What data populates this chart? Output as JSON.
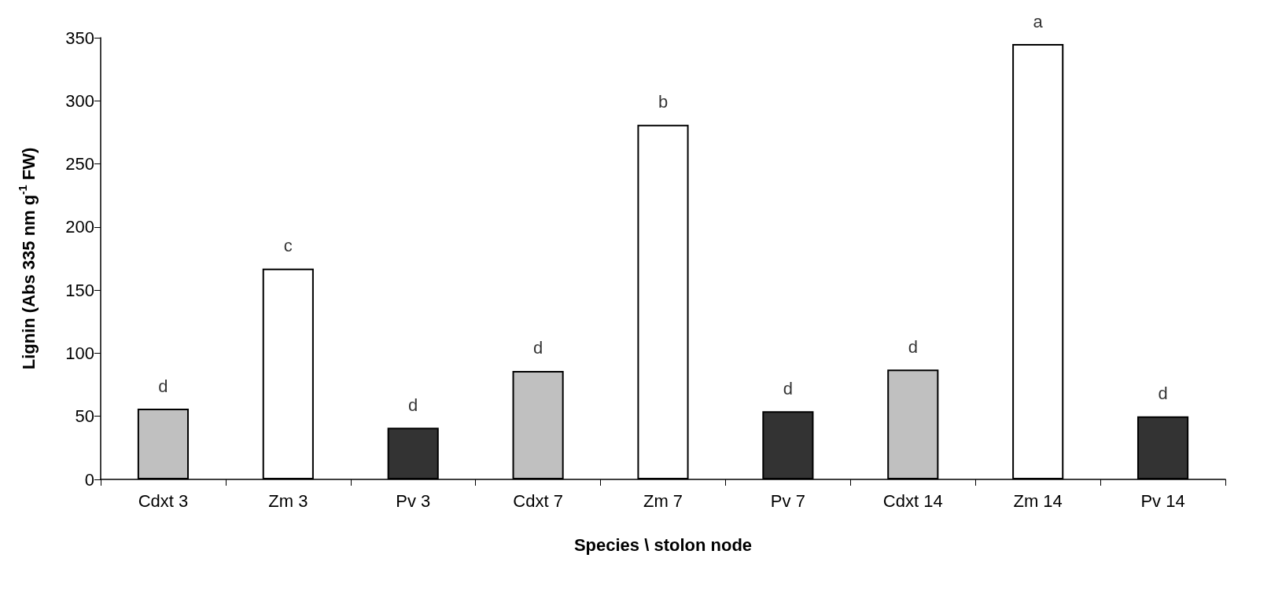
{
  "chart_data": {
    "type": "bar",
    "xlabel": "Species \\ stolon node",
    "ylabel": "Lignin (Abs 335 nm g$^{-1}$ FW)",
    "categories": [
      "Cdxt 3",
      "Zm 3",
      "Pv 3",
      "Cdxt 7",
      "Zm 7",
      "Pv 7",
      "Cdxt 14",
      "Zm 14",
      "Pv 14"
    ],
    "values": [
      56,
      167,
      41,
      86,
      281,
      54,
      87,
      345,
      50
    ],
    "colors": [
      "#c0c0c0",
      "#ffffff",
      "#333333",
      "#c0c0c0",
      "#ffffff",
      "#333333",
      "#c0c0c0",
      "#ffffff",
      "#333333"
    ],
    "ylim": [
      0,
      350
    ],
    "yticks": [
      0,
      50,
      100,
      150,
      200,
      250,
      300,
      350
    ],
    "grid": false,
    "annotations": [
      {
        "text": "d",
        "x": "Cdxt 3",
        "y": 56
      },
      {
        "text": "c",
        "x": "Zm 3",
        "y": 167
      },
      {
        "text": "d",
        "x": "Pv 3",
        "y": 41
      },
      {
        "text": "d",
        "x": "Cdxt 7",
        "y": 86
      },
      {
        "text": "b",
        "x": "Zm 7",
        "y": 281
      },
      {
        "text": "d",
        "x": "Pv 7",
        "y": 54
      },
      {
        "text": "d",
        "x": "Cdxt 14",
        "y": 87
      },
      {
        "text": "a",
        "x": "Zm 14",
        "y": 345
      },
      {
        "text": "d",
        "x": "Pv 14",
        "y": 50
      }
    ]
  }
}
